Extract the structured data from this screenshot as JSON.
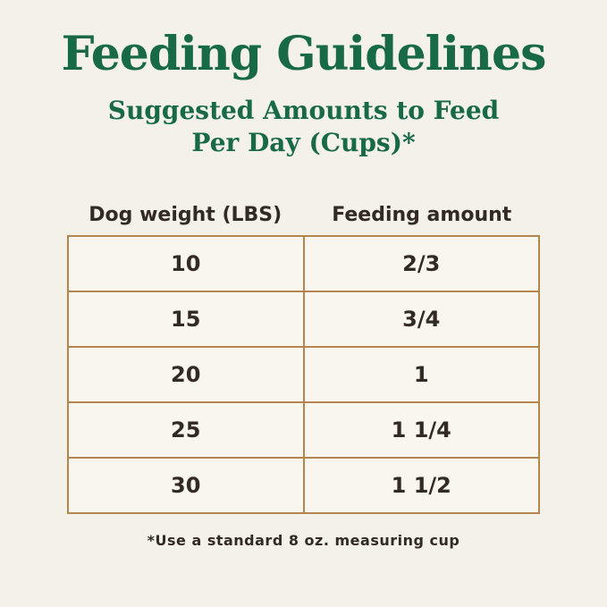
{
  "header": {
    "title": "Feeding Guidelines",
    "subtitle_line1": "Suggested Amounts to Feed",
    "subtitle_line2": "Per Day (Cups)*"
  },
  "chart_data": {
    "type": "table",
    "title": "Feeding Guidelines",
    "subtitle": "Suggested Amounts to Feed Per Day (Cups)*",
    "columns": [
      "Dog weight (LBS)",
      "Feeding amount"
    ],
    "rows": [
      [
        "10",
        "2/3"
      ],
      [
        "15",
        "3/4"
      ],
      [
        "20",
        "1"
      ],
      [
        "25",
        "1 1/4"
      ],
      [
        "30",
        "1 1/2"
      ]
    ],
    "footnote": "*Use a standard 8 oz. measuring cup",
    "layout": {
      "columns_count": 2,
      "rows_count": 5,
      "grid": "bordered",
      "alignment": "center"
    }
  },
  "footer": {
    "note": "*Use a standard 8 oz. measuring cup"
  },
  "colors": {
    "background": "#f3f1e8",
    "title_green": "#186945",
    "table_border": "#b5854f",
    "table_text": "#342a25",
    "cell_background": "#f8f6ef"
  }
}
